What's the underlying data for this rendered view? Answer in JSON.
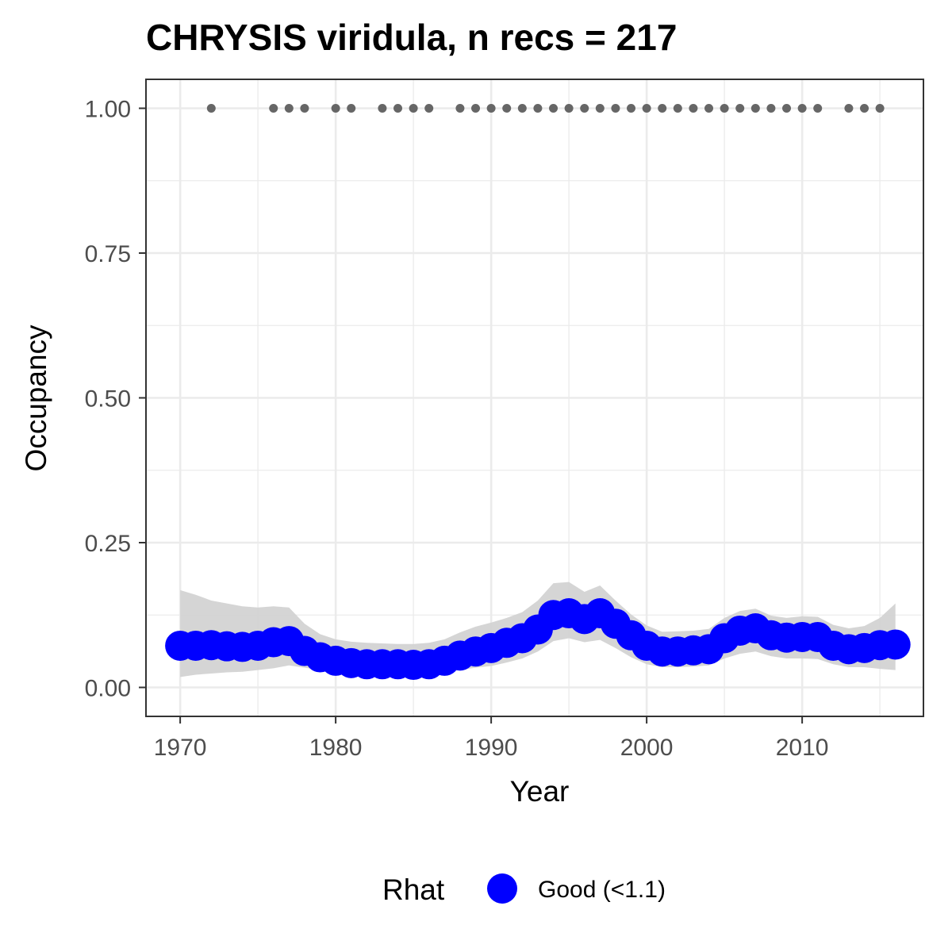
{
  "chart_data": {
    "type": "line",
    "title": "CHRYSIS viridula, n recs = 217",
    "xlabel": "Year",
    "ylabel": "Occupancy",
    "xlim": [
      1967.8,
      2017.8
    ],
    "ylim": [
      -0.05,
      1.05
    ],
    "x_ticks": [
      1970,
      1980,
      1990,
      2000,
      2010
    ],
    "x_tick_labels": [
      "1970",
      "1980",
      "1990",
      "2000",
      "2010"
    ],
    "y_ticks": [
      0,
      0.25,
      0.5,
      0.75,
      1.0
    ],
    "y_tick_labels": [
      "0.00",
      "0.25",
      "0.50",
      "0.75",
      "1.00"
    ],
    "grid": true,
    "legend": {
      "title": "Rhat",
      "position": "bottom",
      "entries": [
        {
          "label": "Good (<1.1)",
          "color": "#0000ff"
        }
      ]
    },
    "colors": {
      "series": "#0000ff",
      "ribbon": "#d3d3d3",
      "records": "#666666",
      "grid": "#ebebeb",
      "border": "#333333"
    },
    "series": [
      {
        "name": "Good (<1.1)",
        "x": [
          1970,
          1971,
          1972,
          1973,
          1974,
          1975,
          1976,
          1977,
          1978,
          1979,
          1980,
          1981,
          1982,
          1983,
          1984,
          1985,
          1986,
          1987,
          1988,
          1989,
          1990,
          1991,
          1992,
          1993,
          1994,
          1995,
          1996,
          1997,
          1998,
          1999,
          2000,
          2001,
          2002,
          2003,
          2004,
          2005,
          2006,
          2007,
          2008,
          2009,
          2010,
          2011,
          2012,
          2013,
          2014,
          2015,
          2016
        ],
        "values": [
          0.072,
          0.072,
          0.073,
          0.071,
          0.07,
          0.072,
          0.078,
          0.08,
          0.063,
          0.052,
          0.046,
          0.042,
          0.04,
          0.04,
          0.04,
          0.039,
          0.04,
          0.046,
          0.055,
          0.062,
          0.068,
          0.077,
          0.085,
          0.1,
          0.125,
          0.128,
          0.118,
          0.128,
          0.11,
          0.09,
          0.072,
          0.062,
          0.062,
          0.064,
          0.066,
          0.085,
          0.098,
          0.102,
          0.09,
          0.086,
          0.087,
          0.087,
          0.072,
          0.066,
          0.068,
          0.073,
          0.074
        ],
        "lower": [
          0.018,
          0.022,
          0.024,
          0.026,
          0.027,
          0.03,
          0.033,
          0.038,
          0.034,
          0.03,
          0.027,
          0.024,
          0.023,
          0.023,
          0.023,
          0.022,
          0.023,
          0.026,
          0.03,
          0.034,
          0.037,
          0.043,
          0.05,
          0.062,
          0.08,
          0.085,
          0.078,
          0.082,
          0.068,
          0.052,
          0.04,
          0.035,
          0.035,
          0.036,
          0.038,
          0.05,
          0.058,
          0.062,
          0.054,
          0.05,
          0.05,
          0.049,
          0.04,
          0.035,
          0.035,
          0.032,
          0.03
        ],
        "upper": [
          0.168,
          0.16,
          0.15,
          0.145,
          0.14,
          0.138,
          0.14,
          0.138,
          0.11,
          0.092,
          0.083,
          0.079,
          0.077,
          0.076,
          0.075,
          0.075,
          0.077,
          0.083,
          0.095,
          0.105,
          0.112,
          0.12,
          0.13,
          0.15,
          0.18,
          0.182,
          0.165,
          0.176,
          0.15,
          0.126,
          0.107,
          0.096,
          0.097,
          0.098,
          0.101,
          0.12,
          0.132,
          0.136,
          0.124,
          0.12,
          0.123,
          0.122,
          0.108,
          0.102,
          0.106,
          0.12,
          0.145
        ]
      }
    ],
    "records": {
      "y": 1.0,
      "x": [
        1972,
        1976,
        1977,
        1978,
        1980,
        1981,
        1983,
        1984,
        1985,
        1986,
        1988,
        1989,
        1990,
        1991,
        1992,
        1993,
        1994,
        1995,
        1996,
        1997,
        1998,
        1999,
        2000,
        2001,
        2002,
        2003,
        2004,
        2005,
        2006,
        2007,
        2008,
        2009,
        2010,
        2011,
        2013,
        2014,
        2015
      ]
    }
  }
}
